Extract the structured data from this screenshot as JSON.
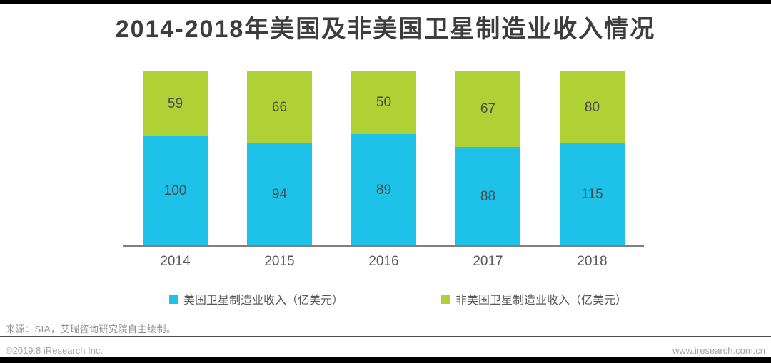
{
  "chart_data": {
    "type": "bar",
    "subtype": "stacked",
    "title": "2014-2018年美国及非美国卫星制造业收入情况",
    "categories": [
      "2014",
      "2015",
      "2016",
      "2017",
      "2018"
    ],
    "series": [
      {
        "name": "美国卫星制造业收入（亿美元）",
        "color": "#1EC2E9",
        "values": [
          100,
          94,
          89,
          88,
          115
        ]
      },
      {
        "name": "非美国卫星制造业收入（亿美元）",
        "color": "#AFD136",
        "values": [
          59,
          66,
          50,
          67,
          80
        ]
      }
    ],
    "stack_order_top_to_bottom": [
      "非美国卫星制造业收入（亿美元）",
      "美国卫星制造业收入（亿美元）"
    ],
    "value_labels": true,
    "grid": false,
    "y_axis_shown": false,
    "x_axis_line_color": "#7f7f7f",
    "bars_rendered_equal_total_height": true,
    "legend_position": "bottom"
  },
  "footer": {
    "source": "来源：SIA，艾瑞咨询研究院自主绘制。",
    "copyright": "©2019.8 iResearch Inc.",
    "website": "www.iresearch.com.cn"
  }
}
